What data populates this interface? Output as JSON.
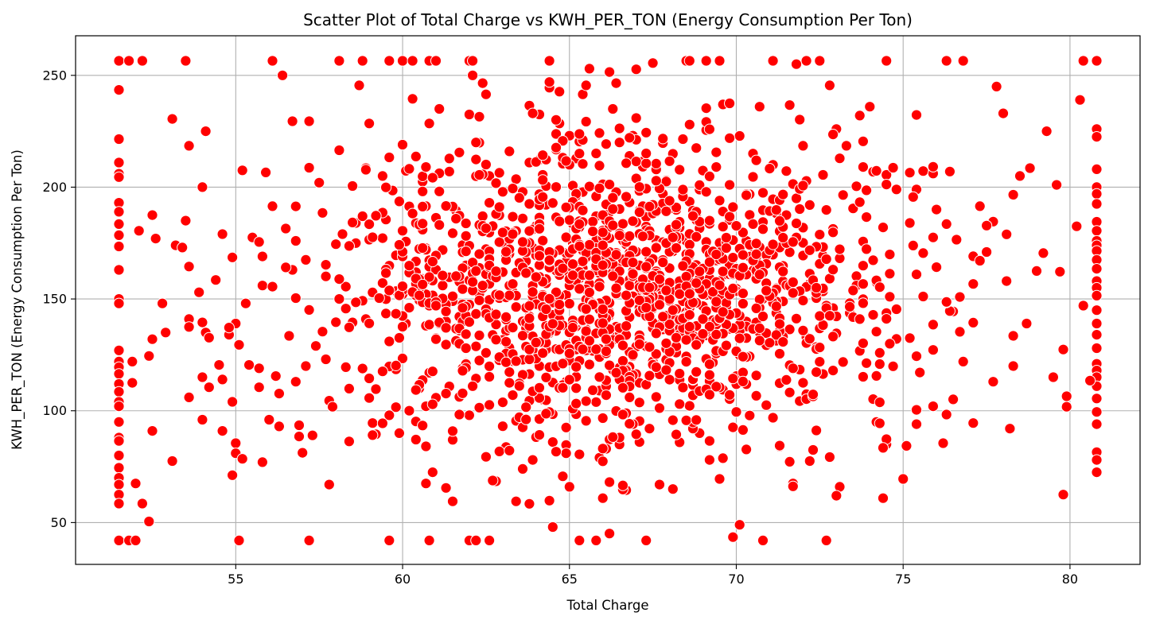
{
  "chart_data": {
    "type": "scatter",
    "title": "Scatter Plot of Total Charge vs KWH_PER_TON (Energy Consumption Per Ton)",
    "xlabel": "Total Charge",
    "ylabel": "KWH_PER_TON (Energy Consumption Per Ton)",
    "xlim": [
      50.2,
      82.1
    ],
    "ylim": [
      31.3,
      267.7
    ],
    "x_ticks": [
      55,
      60,
      65,
      70,
      75,
      80
    ],
    "y_ticks": [
      50,
      100,
      150,
      200,
      250
    ],
    "x_tick_labels": [
      "55",
      "60",
      "65",
      "70",
      "75",
      "80"
    ],
    "y_tick_labels": [
      "50",
      "100",
      "150",
      "200",
      "250"
    ],
    "grid": true,
    "marker_color": "#ff0000",
    "marker_edge_color": "#ffffff",
    "x_cap_min": 51.5,
    "x_cap_max": 80.8,
    "y_cap_min": 42,
    "y_cap_max": 256.5,
    "points": [
      [
        51.5,
        256.5
      ],
      [
        51.8,
        256.5
      ],
      [
        52.2,
        256.5
      ],
      [
        53.5,
        256.5
      ],
      [
        56.1,
        256.5
      ],
      [
        58.1,
        256.5
      ],
      [
        58.8,
        256.5
      ],
      [
        59.6,
        256.5
      ],
      [
        60,
        256.5
      ],
      [
        60.3,
        256.5
      ],
      [
        60.8,
        256.5
      ],
      [
        61,
        256.5
      ],
      [
        62,
        256.5
      ],
      [
        62.1,
        256.5
      ],
      [
        64.4,
        256.5
      ],
      [
        68.5,
        256.5
      ],
      [
        68.6,
        256.5
      ],
      [
        69.1,
        256.5
      ],
      [
        69.5,
        256.5
      ],
      [
        71.1,
        256.5
      ],
      [
        72.1,
        256.5
      ],
      [
        72.5,
        256.5
      ],
      [
        74.5,
        256.5
      ],
      [
        76.3,
        256.5
      ],
      [
        76.8,
        256.5
      ],
      [
        80.4,
        256.5
      ],
      [
        80.8,
        256.5
      ],
      [
        51.5,
        42
      ],
      [
        51.8,
        42
      ],
      [
        52,
        42
      ],
      [
        55.1,
        42
      ],
      [
        57.2,
        42
      ],
      [
        59.6,
        42
      ],
      [
        60.8,
        42
      ],
      [
        62,
        42
      ],
      [
        62.2,
        42
      ],
      [
        62.6,
        42
      ],
      [
        65.3,
        42
      ],
      [
        65.8,
        42
      ],
      [
        67.3,
        42
      ],
      [
        70.8,
        42
      ],
      [
        72.7,
        42
      ],
      [
        51.5,
        243.5
      ],
      [
        51.5,
        221.5
      ],
      [
        51.5,
        211
      ],
      [
        51.5,
        206
      ],
      [
        51.5,
        204.5
      ],
      [
        51.5,
        193
      ],
      [
        51.5,
        189
      ],
      [
        51.5,
        183.5
      ],
      [
        51.5,
        178.5
      ],
      [
        51.5,
        173.5
      ],
      [
        51.5,
        163
      ],
      [
        51.5,
        150
      ],
      [
        51.5,
        148
      ],
      [
        51.5,
        127
      ],
      [
        51.5,
        122
      ],
      [
        51.5,
        119.5
      ],
      [
        51.5,
        116.5
      ],
      [
        51.5,
        112
      ],
      [
        51.5,
        108.5
      ],
      [
        51.5,
        104
      ],
      [
        51.5,
        102
      ],
      [
        51.5,
        95
      ],
      [
        51.5,
        88
      ],
      [
        51.5,
        86.5
      ],
      [
        51.5,
        80
      ],
      [
        51.5,
        74.5
      ],
      [
        51.5,
        70
      ],
      [
        51.5,
        67
      ],
      [
        51.5,
        62.5
      ],
      [
        51.5,
        58.5
      ],
      [
        80.8,
        226
      ],
      [
        80.8,
        222.5
      ],
      [
        80.8,
        208
      ],
      [
        80.8,
        200
      ],
      [
        80.8,
        197
      ],
      [
        80.8,
        192.5
      ],
      [
        80.8,
        184.5
      ],
      [
        80.8,
        180.5
      ],
      [
        80.8,
        176
      ],
      [
        80.8,
        174
      ],
      [
        80.8,
        171.5
      ],
      [
        80.8,
        167.5
      ],
      [
        80.8,
        163.5
      ],
      [
        80.8,
        158
      ],
      [
        80.8,
        155
      ],
      [
        80.8,
        151.5
      ],
      [
        80.8,
        145
      ],
      [
        80.8,
        139
      ],
      [
        80.8,
        134
      ],
      [
        80.8,
        128
      ],
      [
        80.8,
        121
      ],
      [
        80.8,
        118
      ],
      [
        80.8,
        115
      ],
      [
        80.8,
        111
      ],
      [
        80.8,
        105.5
      ],
      [
        80.8,
        99.5
      ],
      [
        80.8,
        94
      ],
      [
        80.8,
        81.5
      ],
      [
        80.8,
        78
      ],
      [
        80.8,
        72.5
      ],
      [
        52.1,
        180.5
      ],
      [
        52.5,
        187.5
      ],
      [
        52.6,
        177
      ],
      [
        52.4,
        124.5
      ],
      [
        52.5,
        132
      ],
      [
        52.5,
        91
      ],
      [
        52.8,
        148
      ],
      [
        52.9,
        135
      ],
      [
        53.1,
        230.5
      ],
      [
        53.2,
        174
      ],
      [
        53.4,
        173
      ],
      [
        53.5,
        185
      ],
      [
        53.6,
        218.5
      ],
      [
        53.6,
        164.5
      ],
      [
        53.6,
        141
      ],
      [
        53.6,
        137.5
      ],
      [
        53.6,
        106
      ],
      [
        53.1,
        77.5
      ],
      [
        52.2,
        58.5
      ],
      [
        52.4,
        50.5
      ],
      [
        52,
        67.5
      ],
      [
        51.9,
        112.5
      ],
      [
        51.9,
        122
      ],
      [
        53.9,
        153
      ],
      [
        54,
        200
      ],
      [
        54.1,
        225
      ],
      [
        54,
        139.5
      ],
      [
        54.1,
        135
      ],
      [
        54,
        115
      ],
      [
        54.2,
        110.5
      ],
      [
        54,
        96
      ],
      [
        54.4,
        158.5
      ],
      [
        54.6,
        179
      ],
      [
        54.5,
        120.5
      ],
      [
        54.6,
        114
      ],
      [
        54.6,
        91
      ],
      [
        54.8,
        134
      ],
      [
        54.9,
        104
      ],
      [
        55,
        139
      ],
      [
        55.1,
        129.5
      ],
      [
        55,
        85.5
      ],
      [
        55,
        81
      ],
      [
        55.2,
        78.5
      ],
      [
        55.2,
        207.5
      ],
      [
        55.3,
        148
      ],
      [
        55.4,
        120.5
      ],
      [
        55.5,
        177.5
      ],
      [
        55.7,
        175.5
      ],
      [
        55.8,
        169
      ],
      [
        55.8,
        156
      ],
      [
        55.7,
        110.5
      ],
      [
        55.7,
        119
      ],
      [
        55.8,
        77
      ],
      [
        56,
        96
      ],
      [
        56.1,
        155.5
      ],
      [
        56.1,
        191.5
      ],
      [
        56.2,
        115.5
      ],
      [
        56.3,
        93
      ],
      [
        56.4,
        250
      ],
      [
        56.5,
        181.5
      ],
      [
        56.6,
        133.5
      ],
      [
        56.7,
        163
      ],
      [
        56.8,
        176
      ],
      [
        56.7,
        229.5
      ],
      [
        56.8,
        113
      ],
      [
        56.9,
        93.5
      ],
      [
        56.9,
        88.5
      ],
      [
        57.1,
        167.5
      ],
      [
        57.2,
        229.5
      ],
      [
        57.1,
        120
      ],
      [
        57.3,
        89
      ],
      [
        57.4,
        129
      ],
      [
        57.5,
        202
      ],
      [
        57.6,
        188.5
      ],
      [
        57.7,
        160.5
      ],
      [
        57.7,
        123
      ],
      [
        57.8,
        104.5
      ],
      [
        57.8,
        67
      ],
      [
        58,
        174.5
      ],
      [
        58.1,
        216.5
      ],
      [
        58.2,
        179
      ],
      [
        58.3,
        155.5
      ],
      [
        58.3,
        119.5
      ],
      [
        58.5,
        200.5
      ],
      [
        58.5,
        139.5
      ],
      [
        58.6,
        184
      ],
      [
        58.6,
        175
      ],
      [
        58.7,
        245.5
      ],
      [
        58.8,
        187
      ],
      [
        58.9,
        208.5
      ],
      [
        58.9,
        141
      ],
      [
        59,
        228.5
      ],
      [
        59,
        176.5
      ],
      [
        59,
        114.5
      ],
      [
        59.1,
        94.5
      ],
      [
        59.2,
        89.5
      ],
      [
        59.4,
        205
      ],
      [
        59.5,
        185.5
      ],
      [
        59.6,
        131
      ],
      [
        59.6,
        98
      ],
      [
        59.7,
        198.5
      ],
      [
        59.8,
        169.5
      ],
      [
        59.8,
        153.5
      ],
      [
        59.8,
        118.5
      ],
      [
        59.9,
        90
      ],
      [
        60,
        219
      ],
      [
        60,
        180.5
      ],
      [
        60,
        169
      ],
      [
        60.1,
        139
      ],
      [
        60.2,
        100
      ],
      [
        60.3,
        239.5
      ],
      [
        60.4,
        162
      ],
      [
        60.5,
        149.5
      ],
      [
        60.5,
        110
      ],
      [
        60.6,
        202.5
      ],
      [
        60.6,
        181
      ],
      [
        60.7,
        191.5
      ],
      [
        60.7,
        138
      ],
      [
        60.7,
        67.5
      ],
      [
        60.8,
        228.5
      ],
      [
        60.8,
        117
      ],
      [
        60.9,
        72.5
      ],
      [
        61.1,
        235
      ],
      [
        61.2,
        156
      ],
      [
        61.3,
        140
      ],
      [
        61.3,
        65.5
      ],
      [
        61.4,
        207
      ],
      [
        61.5,
        59.5
      ],
      [
        61.5,
        87
      ],
      [
        61.6,
        189.5
      ],
      [
        61.8,
        119
      ],
      [
        61.9,
        165
      ],
      [
        62,
        232.5
      ],
      [
        62,
        98
      ],
      [
        62.1,
        250
      ],
      [
        62.3,
        231.5
      ],
      [
        62.4,
        246.5
      ],
      [
        62.5,
        241.5
      ],
      [
        62.6,
        205
      ],
      [
        62.8,
        68.5
      ],
      [
        63,
        162
      ],
      [
        63.2,
        216
      ],
      [
        63.3,
        107
      ],
      [
        63.4,
        95.5
      ],
      [
        63.6,
        186
      ],
      [
        63.6,
        74
      ],
      [
        63.8,
        211
      ],
      [
        63.9,
        78
      ],
      [
        64,
        169.5
      ],
      [
        64.1,
        232.5
      ],
      [
        64.2,
        105
      ],
      [
        64.3,
        200.5
      ],
      [
        64.4,
        244.5
      ],
      [
        64.4,
        247
      ],
      [
        64.5,
        86
      ],
      [
        64.5,
        48
      ],
      [
        64.7,
        228.5
      ],
      [
        64.8,
        210.5
      ],
      [
        64.9,
        92.5
      ],
      [
        65,
        223
      ],
      [
        65.2,
        98.5
      ],
      [
        65.4,
        241.5
      ],
      [
        65.5,
        245.5
      ],
      [
        65.6,
        253
      ],
      [
        65.8,
        187
      ],
      [
        65.9,
        79
      ],
      [
        66,
        201
      ],
      [
        66.2,
        251.5
      ],
      [
        66.3,
        235
      ],
      [
        66.4,
        246.5
      ],
      [
        66.5,
        165
      ],
      [
        66.7,
        64.5
      ],
      [
        66.9,
        223
      ],
      [
        67.1,
        86
      ],
      [
        67.2,
        211.5
      ],
      [
        67.4,
        92
      ],
      [
        67.5,
        255.5
      ],
      [
        67.6,
        162
      ],
      [
        67.7,
        67
      ],
      [
        67.9,
        203
      ],
      [
        68,
        181
      ],
      [
        68.1,
        65
      ],
      [
        68.3,
        158
      ],
      [
        68.4,
        221.5
      ],
      [
        68.6,
        228
      ],
      [
        68.8,
        217.5
      ],
      [
        68.9,
        90
      ],
      [
        69.1,
        225.5
      ],
      [
        69.2,
        78
      ],
      [
        69.4,
        209
      ],
      [
        69.5,
        69.5
      ],
      [
        69.6,
        237
      ],
      [
        69.8,
        237.5
      ],
      [
        69.9,
        43.5
      ],
      [
        70.1,
        49
      ],
      [
        70.3,
        176
      ],
      [
        70.5,
        215
      ],
      [
        70.7,
        236
      ],
      [
        70.9,
        102.5
      ],
      [
        71.1,
        210
      ],
      [
        71.3,
        84
      ],
      [
        71.5,
        187.5
      ],
      [
        71.7,
        67.5
      ],
      [
        71.8,
        255
      ],
      [
        72,
        218.5
      ],
      [
        72.2,
        77.5
      ],
      [
        72.4,
        128.5
      ],
      [
        72.6,
        205.5
      ],
      [
        72.8,
        245.5
      ],
      [
        73,
        226
      ],
      [
        73.1,
        66
      ],
      [
        73.3,
        218.5
      ],
      [
        73.5,
        190.5
      ],
      [
        73.7,
        232
      ],
      [
        73.8,
        220.5
      ],
      [
        74,
        236
      ],
      [
        74.2,
        95
      ],
      [
        74.4,
        182
      ],
      [
        74.5,
        85
      ],
      [
        74.8,
        199
      ],
      [
        75,
        69.5
      ],
      [
        75.2,
        206.5
      ],
      [
        75.4,
        94
      ],
      [
        75.6,
        170.5
      ],
      [
        75.9,
        177.5
      ],
      [
        76,
        190
      ],
      [
        76.2,
        85.5
      ],
      [
        76.3,
        183.5
      ],
      [
        76.4,
        207
      ],
      [
        76.6,
        176.5
      ],
      [
        76.8,
        122
      ],
      [
        77.1,
        94.5
      ],
      [
        77.3,
        191.5
      ],
      [
        77.5,
        171
      ],
      [
        77.7,
        113
      ],
      [
        77.8,
        245
      ],
      [
        78,
        233
      ],
      [
        78.2,
        92
      ],
      [
        78.3,
        120
      ],
      [
        78.5,
        205
      ],
      [
        78.7,
        139
      ],
      [
        78.8,
        208.5
      ],
      [
        79,
        162.5
      ],
      [
        79.2,
        170.5
      ],
      [
        79.3,
        225
      ],
      [
        79.5,
        115
      ],
      [
        79.6,
        201
      ],
      [
        79.8,
        62.5
      ],
      [
        80.2,
        182.5
      ],
      [
        80.3,
        239
      ],
      [
        80.4,
        147
      ],
      [
        80.6,
        113.5
      ]
    ],
    "cloud": {
      "count": 1450,
      "seed": 7,
      "x_mean": 66.8,
      "x_sd": 4.2,
      "y_mean": 152,
      "y_sd": 33
    }
  }
}
